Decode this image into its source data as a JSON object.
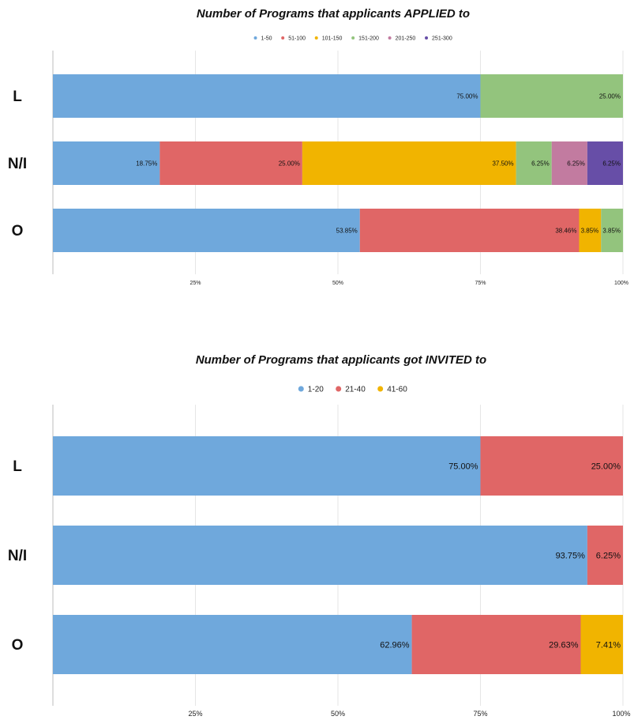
{
  "chart_data": [
    {
      "type": "bar",
      "orientation": "horizontal",
      "stacked": "percent",
      "title": "Number of Programs that applicants APPLIED to",
      "categories": [
        "L",
        "N/I",
        "O"
      ],
      "series": [
        {
          "name": "1-50",
          "color": "#6fa8dc",
          "values": [
            75.0,
            18.75,
            53.85
          ],
          "labels": [
            "75.00%",
            "18.75%",
            "53.85%"
          ]
        },
        {
          "name": "51-100",
          "color": "#e06666",
          "values": [
            0,
            25.0,
            38.46
          ],
          "labels": [
            "",
            "25.00%",
            "38.46%"
          ]
        },
        {
          "name": "101-150",
          "color": "#f1b400",
          "values": [
            0,
            37.5,
            3.85
          ],
          "labels": [
            "",
            "37.50%",
            "3.85%"
          ]
        },
        {
          "name": "151-200",
          "color": "#93c47d",
          "values": [
            25.0,
            6.25,
            3.85
          ],
          "labels": [
            "25.00%",
            "6.25%",
            "3.85%"
          ]
        },
        {
          "name": "201-250",
          "color": "#c27ba0",
          "values": [
            0,
            6.25,
            0
          ],
          "labels": [
            "",
            "6.25%",
            ""
          ]
        },
        {
          "name": "251-300",
          "color": "#674ea7",
          "values": [
            0,
            6.25,
            0
          ],
          "labels": [
            "",
            "6.25%",
            ""
          ]
        }
      ],
      "xlim": [
        0,
        100
      ],
      "xticks": [
        "25%",
        "50%",
        "75%",
        "100%"
      ],
      "grid": true,
      "legend": "top"
    },
    {
      "type": "bar",
      "orientation": "horizontal",
      "stacked": "percent",
      "title": "Number of Programs that applicants got INVITED to",
      "categories": [
        "L",
        "N/I",
        "O"
      ],
      "series": [
        {
          "name": "1-20",
          "color": "#6fa8dc",
          "values": [
            75.0,
            93.75,
            62.96
          ],
          "labels": [
            "75.00%",
            "93.75%",
            "62.96%"
          ]
        },
        {
          "name": "21-40",
          "color": "#e06666",
          "values": [
            25.0,
            6.25,
            29.63
          ],
          "labels": [
            "25.00%",
            "6.25%",
            "29.63%"
          ]
        },
        {
          "name": "41-60",
          "color": "#f1b400",
          "values": [
            0,
            0,
            7.41
          ],
          "labels": [
            "",
            "",
            "7.41%"
          ]
        }
      ],
      "xlim": [
        0,
        100
      ],
      "xticks": [
        "25%",
        "50%",
        "75%",
        "100%"
      ],
      "grid": true,
      "legend": "top"
    }
  ]
}
